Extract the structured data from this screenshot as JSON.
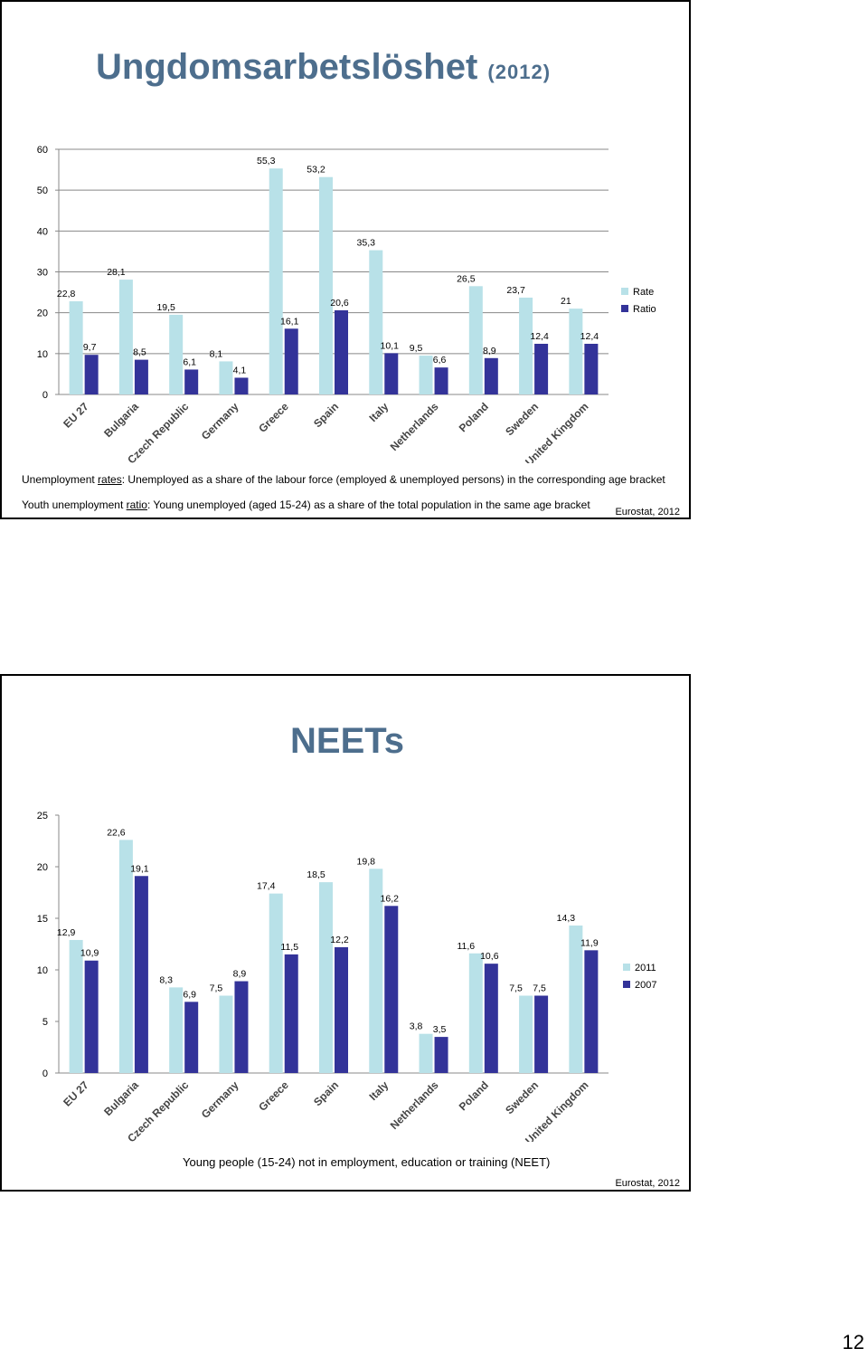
{
  "slide1": {
    "title": "Ungdomsarbetslöshet",
    "title_year": "(2012)",
    "note1_prefix": "Unemployment ",
    "note1_term": "rates",
    "note1_rest": ": Unemployed as a share of the labour force (employed & unemployed persons) in the corresponding age bracket",
    "note2_prefix": "Youth unemployment ",
    "note2_term": "ratio",
    "note2_rest": ": Young unemployed (aged 15-24) as a share of the total population in the same age bracket",
    "source": "Eurostat, 2012"
  },
  "slide2": {
    "title": "NEETs",
    "caption": "Young people (15-24) not in employment, education or training (NEET)",
    "source": "Eurostat, 2012"
  },
  "page_number": "12",
  "chart_data": [
    {
      "type": "bar",
      "categories": [
        "EU 27",
        "Bulgaria",
        "Czech Republic",
        "Germany",
        "Greece",
        "Spain",
        "Italy",
        "Netherlands",
        "Poland",
        "Sweden",
        "United Kingdom"
      ],
      "series": [
        {
          "name": "Rate",
          "color": "#b8e1e8",
          "values": [
            22.8,
            28.1,
            19.5,
            8.1,
            55.3,
            53.2,
            35.3,
            9.5,
            26.5,
            23.7,
            21
          ],
          "labels": [
            "22,8",
            "28,1",
            "19,5",
            "8,1",
            "55,3",
            "53,2",
            "35,3",
            "9,5",
            "26,5",
            "23,7",
            "21"
          ]
        },
        {
          "name": "Ratio",
          "color": "#333399",
          "values": [
            9.7,
            8.5,
            6.1,
            4.1,
            16.1,
            20.6,
            10.1,
            6.6,
            8.9,
            12.4,
            12.4
          ],
          "labels": [
            "9,7",
            "8,5",
            "6,1",
            "4,1",
            "16,1",
            "20,6",
            "10,1",
            "6,6",
            "8,9",
            "12,4",
            "12,4"
          ]
        }
      ],
      "yticks": [
        "0",
        "10",
        "20",
        "30",
        "40",
        "50",
        "60"
      ],
      "ylim": [
        0,
        60
      ],
      "grid": true,
      "legend": "right"
    },
    {
      "type": "bar",
      "categories": [
        "EU 27",
        "Bulgaria",
        "Czech Republic",
        "Germany",
        "Greece",
        "Spain",
        "Italy",
        "Netherlands",
        "Poland",
        "Sweden",
        "United Kingdom"
      ],
      "series": [
        {
          "name": "2011",
          "color": "#b8e1e8",
          "values": [
            12.9,
            22.6,
            8.3,
            7.5,
            17.4,
            18.5,
            19.8,
            3.8,
            11.6,
            7.5,
            14.3
          ],
          "labels": [
            "12,9",
            "22,6",
            "8,3",
            "7,5",
            "17,4",
            "18,5",
            "19,8",
            "3,8",
            "11,6",
            "7,5",
            "14,3"
          ]
        },
        {
          "name": "2007",
          "color": "#333399",
          "values": [
            10.9,
            19.1,
            6.9,
            8.9,
            11.5,
            12.2,
            16.2,
            3.5,
            10.6,
            7.5,
            11.9
          ],
          "labels": [
            "10,9",
            "19,1",
            "6,9",
            "8,9",
            "11,5",
            "12,2",
            "16,2",
            "3,5",
            "10,6",
            "7,5",
            "11,9"
          ]
        }
      ],
      "yticks": [
        "0",
        "5",
        "10",
        "15",
        "20",
        "25"
      ],
      "ylim": [
        0,
        25
      ],
      "grid": false,
      "legend": "right"
    }
  ]
}
